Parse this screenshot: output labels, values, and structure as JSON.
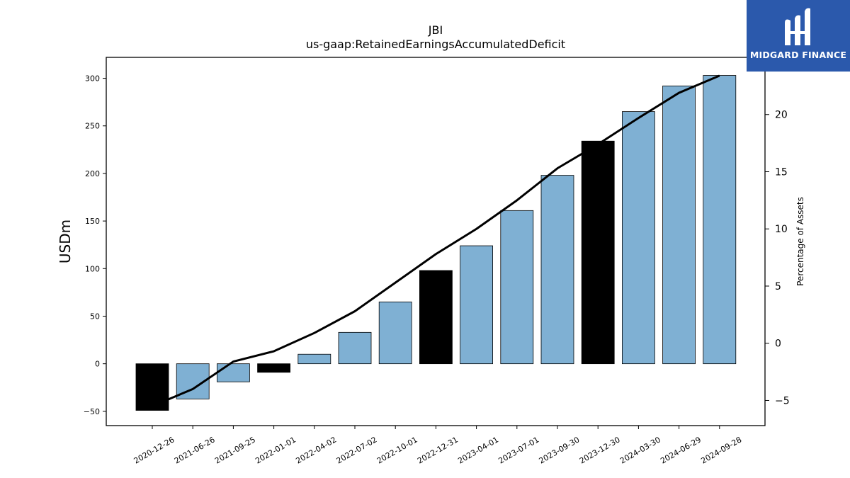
{
  "logo": {
    "text": "MIDGARD FINANCE"
  },
  "colors": {
    "bar": "#7fb0d3",
    "bar_highlight": "#000000",
    "line": "#000000",
    "logo_bg": "#2b59ac"
  },
  "chart_data": {
    "type": "bar",
    "title": "JBI",
    "subtitle": "us-gaap:RetainedEarningsAccumulatedDeficit",
    "ylabel": "USDm",
    "y2label": "Percentage of Assets",
    "ylim": [
      -65,
      322
    ],
    "y2lim": [
      -7.2,
      25
    ],
    "yticks": [
      -50,
      0,
      50,
      100,
      150,
      200,
      250,
      300
    ],
    "y2ticks": [
      -5,
      0,
      5,
      10,
      15,
      20
    ],
    "categories": [
      "2020-12-26",
      "2021-06-26",
      "2021-09-25",
      "2022-01-01",
      "2022-04-02",
      "2022-07-02",
      "2022-10-01",
      "2022-12-31",
      "2023-04-01",
      "2023-07-01",
      "2023-09-30",
      "2023-12-30",
      "2024-03-30",
      "2024-06-29",
      "2024-09-28"
    ],
    "series": [
      {
        "type": "bar",
        "values": [
          -49,
          -37,
          -19,
          -9,
          10,
          33,
          65,
          98,
          124,
          161,
          198,
          234,
          265,
          292,
          303
        ],
        "highlight": [
          true,
          false,
          false,
          true,
          false,
          false,
          false,
          true,
          false,
          false,
          false,
          true,
          false,
          false,
          false
        ]
      },
      {
        "type": "line",
        "axis": "right",
        "values": [
          -5.5,
          -4.0,
          -1.6,
          -0.7,
          0.9,
          2.8,
          5.3,
          7.8,
          10.0,
          12.5,
          15.3,
          17.4,
          19.7,
          21.9,
          23.4
        ]
      }
    ],
    "grid": false,
    "legend": "none"
  }
}
